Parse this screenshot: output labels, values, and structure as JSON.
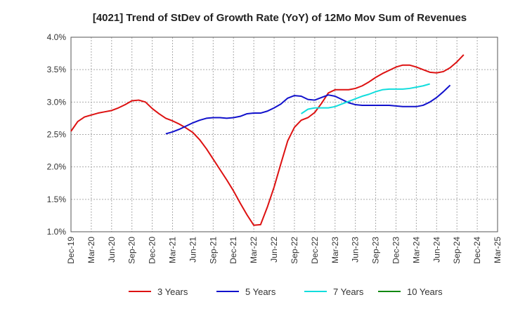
{
  "chart_data": {
    "type": "line",
    "title": "[4021]  Trend of StDev of Growth Rate (YoY) of 12Mo Mov Sum of Revenues",
    "xlabel": "",
    "ylabel": "",
    "ylim": [
      1.0,
      4.0
    ],
    "y_ticks": [
      "1.0%",
      "1.5%",
      "2.0%",
      "2.5%",
      "3.0%",
      "3.5%",
      "4.0%"
    ],
    "y_tick_values": [
      1.0,
      1.5,
      2.0,
      2.5,
      3.0,
      3.5,
      4.0
    ],
    "x_tick_labels": [
      "Dec-19",
      "Mar-20",
      "Jun-20",
      "Sep-20",
      "Dec-20",
      "Mar-21",
      "Jun-21",
      "Sep-21",
      "Dec-21",
      "Mar-22",
      "Jun-22",
      "Sep-22",
      "Dec-22",
      "Mar-23",
      "Jun-23",
      "Sep-23",
      "Dec-23",
      "Mar-24",
      "Jun-24",
      "Sep-24",
      "Dec-24",
      "Mar-25"
    ],
    "grid": true,
    "legend_position": "bottom",
    "series": [
      {
        "name": "3 Years",
        "color": "#dd1111",
        "start_index": 0,
        "values": [
          2.55,
          2.7,
          2.77,
          2.8,
          2.83,
          2.85,
          2.87,
          2.91,
          2.96,
          3.02,
          3.03,
          3.0,
          2.9,
          2.82,
          2.75,
          2.71,
          2.66,
          2.6,
          2.53,
          2.42,
          2.28,
          2.12,
          1.96,
          1.8,
          1.63,
          1.44,
          1.26,
          1.1,
          1.11,
          1.38,
          1.69,
          2.05,
          2.4,
          2.61,
          2.72,
          2.76,
          2.84,
          2.98,
          3.14,
          3.19,
          3.19,
          3.19,
          3.21,
          3.25,
          3.31,
          3.38,
          3.44,
          3.49,
          3.54,
          3.57,
          3.57,
          3.54,
          3.5,
          3.46,
          3.45,
          3.47,
          3.53,
          3.62,
          3.73
        ]
      },
      {
        "name": "5 Years",
        "color": "#1111cc",
        "start_index": 14,
        "values": [
          2.51,
          2.54,
          2.58,
          2.63,
          2.68,
          2.72,
          2.75,
          2.76,
          2.76,
          2.75,
          2.76,
          2.78,
          2.82,
          2.83,
          2.83,
          2.86,
          2.91,
          2.97,
          3.06,
          3.1,
          3.09,
          3.04,
          3.03,
          3.07,
          3.11,
          3.09,
          3.04,
          2.99,
          2.96,
          2.95,
          2.95,
          2.95,
          2.95,
          2.95,
          2.94,
          2.93,
          2.93,
          2.93,
          2.95,
          3.0,
          3.07,
          3.16,
          3.26
        ]
      },
      {
        "name": "7 Years",
        "color": "#11dddd",
        "start_index": 34,
        "values": [
          2.82,
          2.89,
          2.91,
          2.91,
          2.91,
          2.93,
          2.97,
          3.01,
          3.05,
          3.09,
          3.12,
          3.16,
          3.19,
          3.2,
          3.2,
          3.2,
          3.21,
          3.23,
          3.25,
          3.28
        ]
      },
      {
        "name": "10 Years",
        "color": "#118811",
        "start_index": 0,
        "values": []
      }
    ]
  }
}
